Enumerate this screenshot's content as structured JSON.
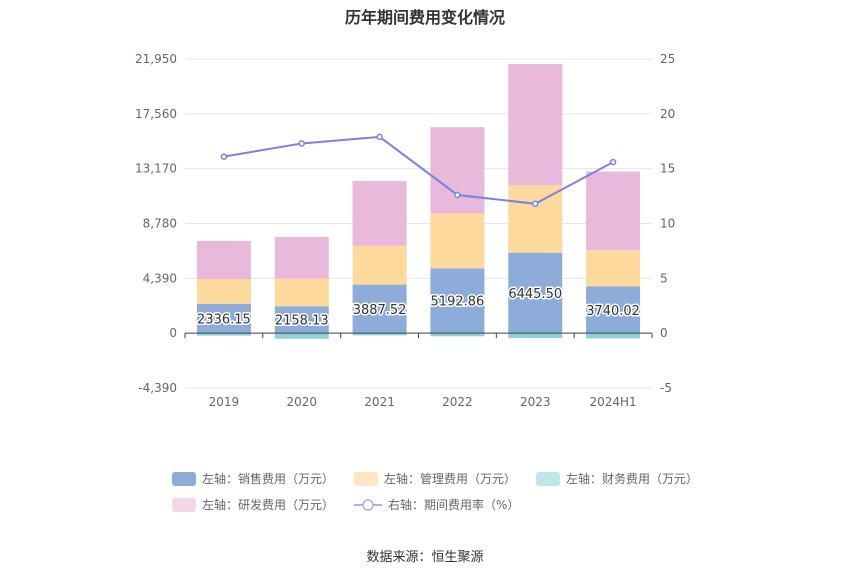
{
  "chart_data": {
    "type": "bar",
    "title": "历年期间费用变化情况",
    "categories": [
      "2019",
      "2020",
      "2021",
      "2022",
      "2023",
      "2024H1"
    ],
    "left_axis": {
      "ylim": [
        -4390,
        21950
      ],
      "ticks": [
        "-4,390",
        "0",
        "4,390",
        "8,780",
        "13,170",
        "17,560",
        "21,950"
      ]
    },
    "right_axis": {
      "ylim": [
        -5,
        25
      ],
      "ticks": [
        "-5",
        "0",
        "5",
        "10",
        "15",
        "20",
        "25"
      ]
    },
    "series": [
      {
        "name": "左轴：销售费用（万元）",
        "type": "stacked-bar",
        "axis": "left",
        "color": "#8eacd9",
        "values": [
          2336.15,
          2158.13,
          3887.52,
          5192.86,
          6445.5,
          3740.02
        ],
        "labels": [
          "2336.15",
          "2158.13",
          "3887.52",
          "5192.86",
          "6445.50",
          "3740.02"
        ]
      },
      {
        "name": "左轴：管理费用（万元）",
        "type": "stacked-bar",
        "axis": "left",
        "color": "#fdd99d",
        "values": [
          2000,
          2200,
          3100,
          4400,
          5400,
          2900
        ]
      },
      {
        "name": "左轴：财务费用（万元）",
        "type": "stacked-bar",
        "axis": "left",
        "color": "#8dd3d7",
        "values": [
          -200,
          -450,
          -180,
          -250,
          -400,
          -420
        ]
      },
      {
        "name": "左轴：研发费用（万元）",
        "type": "stacked-bar",
        "axis": "left",
        "color": "#e8b9da",
        "values": [
          3050,
          3350,
          5200,
          6900,
          9700,
          6300
        ]
      },
      {
        "name": "右轴：期间费用率（%）",
        "type": "line",
        "axis": "right",
        "color": "#7b80e8",
        "values": [
          16.1,
          17.3,
          17.9,
          12.6,
          11.8,
          15.6
        ]
      }
    ]
  },
  "source": "数据来源：恒生聚源"
}
